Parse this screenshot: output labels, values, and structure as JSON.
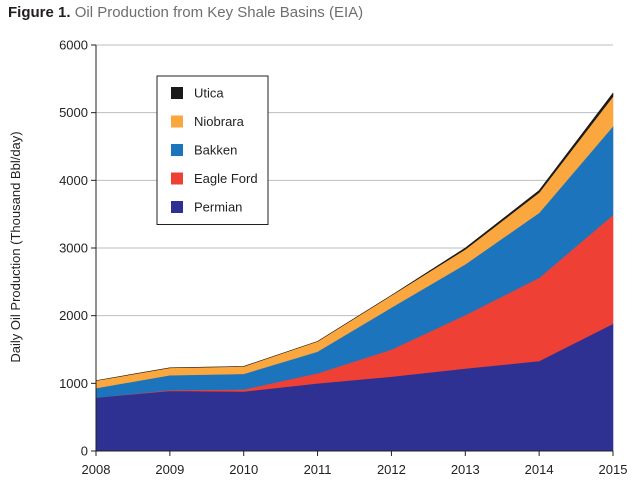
{
  "figure": {
    "title_lead": "Figure 1.",
    "title_rest": "Oil Production from Key Shale Basins (EIA)"
  },
  "chart_data": {
    "type": "area",
    "stacked": true,
    "ylabel": "Daily Oil Production (Thousand Bbl/day)",
    "xlabel": "",
    "x": [
      2008,
      2009,
      2010,
      2011,
      2012,
      2013,
      2014,
      2015
    ],
    "ylim": [
      0,
      6000
    ],
    "yticks": [
      0,
      1000,
      2000,
      3000,
      4000,
      5000,
      6000
    ],
    "grid": true,
    "legend_position": "top-left",
    "series": [
      {
        "name": "Permian",
        "color": "#2e3192",
        "values": [
          790,
          890,
          880,
          1000,
          1100,
          1220,
          1330,
          1880
        ]
      },
      {
        "name": "Eagle Ford",
        "color": "#ee4035",
        "values": [
          0,
          10,
          30,
          150,
          400,
          790,
          1230,
          1610
        ]
      },
      {
        "name": "Bakken",
        "color": "#1c75bc",
        "values": [
          140,
          220,
          230,
          320,
          620,
          750,
          960,
          1310
        ]
      },
      {
        "name": "Niobrara",
        "color": "#f9a73e",
        "values": [
          110,
          110,
          110,
          150,
          180,
          220,
          300,
          440
        ]
      },
      {
        "name": "Utica",
        "color": "#1a1a1a",
        "values": [
          0,
          0,
          0,
          0,
          0,
          20,
          30,
          50
        ]
      }
    ]
  }
}
